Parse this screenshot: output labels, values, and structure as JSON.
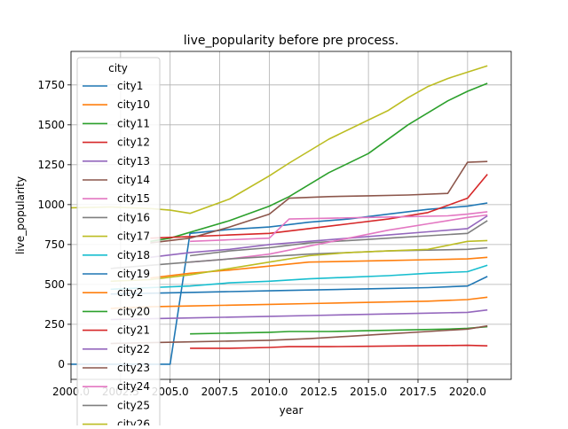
{
  "chart_data": {
    "type": "line",
    "title": "live_popularity before pre process.",
    "xlabel": "year",
    "ylabel": "live_popularity",
    "xlim": [
      2000.0,
      2022.2
    ],
    "ylim": [
      -95,
      1960
    ],
    "xticks": [
      2000.0,
      2002.5,
      2005.0,
      2007.5,
      2010.0,
      2012.5,
      2015.0,
      2017.5,
      2020.0
    ],
    "xtick_labels": [
      "2000.0",
      "2002.5",
      "2005.0",
      "2007.5",
      "2010.0",
      "2012.5",
      "2015.0",
      "2017.5",
      "2020.0"
    ],
    "yticks": [
      0,
      250,
      500,
      750,
      1000,
      1250,
      1500,
      1750
    ],
    "ytick_labels": [
      "0",
      "250",
      "500",
      "750",
      "1000",
      "1250",
      "1500",
      "1750"
    ],
    "grid": true,
    "legend": {
      "title": "city",
      "placement": "upper-left"
    },
    "series": [
      {
        "name": "city1",
        "color": "#1f77b4",
        "x": [
          2000,
          2001,
          2002,
          2003,
          2004,
          2005,
          2006,
          2008,
          2010,
          2012,
          2014,
          2016,
          2018,
          2020,
          2021
        ],
        "y": [
          0,
          0,
          0,
          0,
          0,
          0,
          820,
          845,
          860,
          890,
          910,
          940,
          970,
          990,
          1010
        ]
      },
      {
        "name": "city10",
        "color": "#ff7f0e",
        "x": [
          2004,
          2006,
          2008,
          2010,
          2012,
          2014,
          2016,
          2018,
          2020,
          2021
        ],
        "y": [
          540,
          570,
          590,
          615,
          640,
          645,
          650,
          655,
          660,
          670
        ]
      },
      {
        "name": "city11",
        "color": "#2ca02c",
        "x": [
          2004,
          2005,
          2008,
          2010,
          2011,
          2013,
          2015,
          2017,
          2019,
          2020,
          2021
        ],
        "y": [
          770,
          790,
          900,
          990,
          1050,
          1200,
          1320,
          1500,
          1650,
          1710,
          1760
        ]
      },
      {
        "name": "city12",
        "color": "#d62728",
        "x": [
          2004,
          2006,
          2008,
          2010,
          2012,
          2014,
          2016,
          2018,
          2020,
          2021
        ],
        "y": [
          790,
          800,
          810,
          820,
          850,
          880,
          910,
          950,
          1040,
          1190
        ]
      },
      {
        "name": "city13",
        "color": "#9467bd",
        "x": [
          2004,
          2006,
          2008,
          2010,
          2012,
          2014,
          2016,
          2018,
          2020,
          2021
        ],
        "y": [
          670,
          700,
          720,
          750,
          770,
          790,
          810,
          830,
          850,
          930
        ]
      },
      {
        "name": "city14",
        "color": "#8c564b",
        "x": [
          2004,
          2006,
          2008,
          2010,
          2011,
          2013,
          2015,
          2017,
          2019,
          2020,
          2021
        ],
        "y": [
          760,
          790,
          860,
          940,
          1040,
          1050,
          1055,
          1060,
          1070,
          1265,
          1270
        ]
      },
      {
        "name": "city15",
        "color": "#e377c2",
        "x": [
          2006,
          2008,
          2010,
          2011,
          2013,
          2015,
          2017,
          2019,
          2020,
          2021
        ],
        "y": [
          770,
          780,
          790,
          910,
          915,
          920,
          925,
          930,
          940,
          955
        ]
      },
      {
        "name": "city16",
        "color": "#7f7f7f",
        "x": [
          2006,
          2008,
          2010,
          2012,
          2014,
          2016,
          2018,
          2020,
          2021
        ],
        "y": [
          680,
          710,
          730,
          760,
          775,
          790,
          805,
          820,
          900
        ]
      },
      {
        "name": "city17",
        "color": "#bcbd22",
        "x": [
          2000,
          2002,
          2004,
          2005,
          2006,
          2008,
          2010,
          2011,
          2013,
          2015,
          2016,
          2017,
          2018,
          2019,
          2020,
          2021
        ],
        "y": [
          980,
          985,
          975,
          965,
          945,
          1035,
          1180,
          1260,
          1410,
          1530,
          1590,
          1670,
          1740,
          1790,
          1830,
          1870
        ]
      },
      {
        "name": "city18",
        "color": "#17becf",
        "x": [
          2002,
          2004,
          2006,
          2008,
          2010,
          2012,
          2014,
          2016,
          2018,
          2020,
          2021
        ],
        "y": [
          470,
          480,
          490,
          510,
          520,
          535,
          545,
          555,
          570,
          580,
          620
        ]
      },
      {
        "name": "city19",
        "color": "#1f77b4",
        "x": [
          2002,
          2004,
          2006,
          2008,
          2010,
          2012,
          2014,
          2016,
          2018,
          2020,
          2021
        ],
        "y": [
          440,
          445,
          450,
          455,
          460,
          465,
          470,
          475,
          480,
          490,
          550
        ]
      },
      {
        "name": "city2",
        "color": "#ff7f0e",
        "x": [
          2002,
          2004,
          2006,
          2008,
          2010,
          2012,
          2014,
          2016,
          2018,
          2020,
          2021
        ],
        "y": [
          350,
          360,
          365,
          370,
          375,
          380,
          385,
          390,
          395,
          405,
          420
        ]
      },
      {
        "name": "city20",
        "color": "#2ca02c",
        "x": [
          2006,
          2008,
          2010,
          2011,
          2013,
          2015,
          2017,
          2019,
          2020,
          2021
        ],
        "y": [
          190,
          195,
          200,
          205,
          205,
          210,
          215,
          220,
          225,
          235
        ]
      },
      {
        "name": "city21",
        "color": "#d62728",
        "x": [
          2006,
          2008,
          2010,
          2011,
          2013,
          2015,
          2017,
          2019,
          2020,
          2021
        ],
        "y": [
          100,
          100,
          105,
          110,
          110,
          112,
          115,
          117,
          118,
          115
        ]
      },
      {
        "name": "city22",
        "color": "#9467bd",
        "x": [
          2002,
          2004,
          2006,
          2008,
          2010,
          2012,
          2014,
          2016,
          2018,
          2020,
          2021
        ],
        "y": [
          280,
          285,
          290,
          295,
          300,
          305,
          310,
          315,
          320,
          325,
          340
        ]
      },
      {
        "name": "city23",
        "color": "#8c564b",
        "x": [
          2002,
          2004,
          2006,
          2008,
          2010,
          2012,
          2014,
          2016,
          2018,
          2020,
          2021
        ],
        "y": [
          130,
          135,
          140,
          145,
          150,
          160,
          175,
          190,
          205,
          220,
          240
        ]
      },
      {
        "name": "city24",
        "color": "#e377c2",
        "x": [
          2006,
          2008,
          2010,
          2012,
          2014,
          2016,
          2018,
          2019,
          2020,
          2021
        ],
        "y": [
          640,
          660,
          690,
          740,
          790,
          840,
          880,
          900,
          920,
          935
        ]
      },
      {
        "name": "city25",
        "color": "#7f7f7f",
        "x": [
          2002,
          2004,
          2006,
          2008,
          2010,
          2012,
          2014,
          2016,
          2018,
          2020,
          2021
        ],
        "y": [
          600,
          620,
          640,
          660,
          675,
          690,
          700,
          710,
          715,
          720,
          730
        ]
      },
      {
        "name": "city26",
        "color": "#bcbd22",
        "x": [
          2002,
          2004,
          2006,
          2008,
          2010,
          2012,
          2014,
          2016,
          2018,
          2020,
          2021
        ],
        "y": [
          520,
          530,
          560,
          600,
          640,
          680,
          700,
          710,
          720,
          770,
          775
        ]
      }
    ]
  }
}
